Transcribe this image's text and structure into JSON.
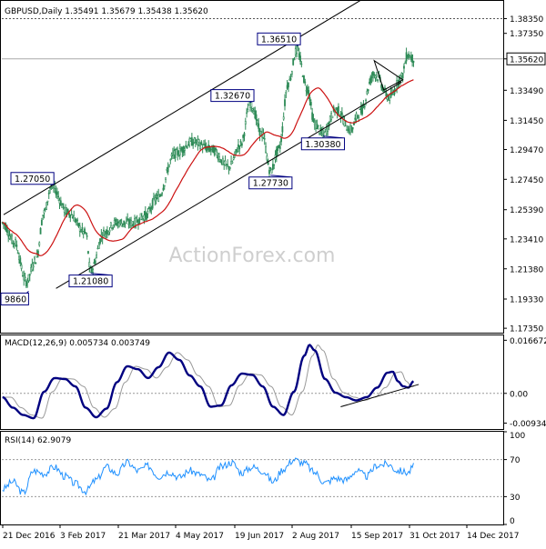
{
  "chart_data": [
    {
      "type": "candlestick",
      "symbol": "GBPUSD",
      "timeframe": "Daily",
      "title": "GBPUSD,Daily  1.35491 1.35679 1.35438 1.35620",
      "ohlc_last": {
        "open": 1.35491,
        "high": 1.35679,
        "low": 1.35438,
        "close": 1.3562
      },
      "price_label": "1.35620",
      "ylim": [
        1.1705,
        1.3955
      ],
      "y_ticks": [
        1.3835,
        1.3735,
        1.3562,
        1.3349,
        1.3145,
        1.2947,
        1.2745,
        1.2539,
        1.2341,
        1.2138,
        1.1933,
        1.1735
      ],
      "y_tick_labels": [
        "1.38350",
        "1.37350",
        "1.35620",
        "1.33490",
        "1.31450",
        "1.29470",
        "1.27450",
        "1.25390",
        "1.23410",
        "1.21380",
        "1.19330",
        "1.17350"
      ],
      "resistance_level": 1.3835,
      "annotations": [
        {
          "label": "1.36510",
          "value": 1.3651,
          "bar": 247
        },
        {
          "label": "1.32670",
          "value": 1.3267,
          "bar": 208
        },
        {
          "label": "1.27050",
          "value": 1.2705,
          "bar": 41
        },
        {
          "label": "1.27730",
          "value": 1.2773,
          "bar": 225
        },
        {
          "label": "1.30380",
          "value": 1.3038,
          "bar": 269
        },
        {
          "label": "1.21080",
          "value": 1.2108,
          "bar": 74
        },
        {
          "label": "9860",
          "value": 1.1986,
          "bar": 22
        }
      ],
      "channel": {
        "upper": [
          [
            1,
            1.2505
          ],
          [
            310,
            1.4005
          ]
        ],
        "lower": [
          [
            45,
            1.2005
          ],
          [
            335,
            1.3405
          ]
        ]
      },
      "moving_average_color": "#cc1111",
      "candle_color": "#2e8b57",
      "x_tick_labels": [
        "21 Dec 2016",
        "3 Feb 2017",
        "21 Mar 2017",
        "4 May 2017",
        "19 Jun 2017",
        "2 Aug 2017",
        "15 Sep 2017",
        "31 Oct 2017",
        "14 Dec 2017"
      ],
      "watermark": "ActionForex.com"
    },
    {
      "type": "line",
      "title": "MACD(12,26,9) 0.005734 0.003749",
      "ylim": [
        -0.0112,
        0.0182
      ],
      "y_ticks": [
        0.016672,
        0.0,
        -0.009345
      ],
      "y_tick_labels": [
        "0.016672",
        "0.00",
        "-0.009345"
      ],
      "series": [
        {
          "name": "MACD",
          "color": "#000080"
        },
        {
          "name": "Signal",
          "color": "#9a9a9a"
        }
      ],
      "values": [
        [
          0,
          -0.0012
        ],
        [
          10,
          -0.0045
        ],
        [
          20,
          -0.0068
        ],
        [
          30,
          -0.0078
        ],
        [
          40,
          0.0005
        ],
        [
          50,
          0.0048
        ],
        [
          60,
          0.0045
        ],
        [
          70,
          0.0022
        ],
        [
          80,
          -0.0045
        ],
        [
          90,
          -0.0075
        ],
        [
          100,
          -0.0048
        ],
        [
          110,
          0.0035
        ],
        [
          120,
          0.0085
        ],
        [
          130,
          0.0076
        ],
        [
          140,
          0.0048
        ],
        [
          150,
          0.0082
        ],
        [
          160,
          0.0128
        ],
        [
          170,
          0.0105
        ],
        [
          180,
          0.0056
        ],
        [
          190,
          0.0022
        ],
        [
          200,
          -0.0042
        ],
        [
          210,
          -0.0038
        ],
        [
          220,
          0.0025
        ],
        [
          230,
          0.0062
        ],
        [
          240,
          0.0058
        ],
        [
          250,
          0.0022
        ],
        [
          260,
          -0.0042
        ],
        [
          270,
          -0.0068
        ],
        [
          280,
          0.0005
        ],
        [
          290,
          0.0118
        ],
        [
          295,
          0.0152
        ],
        [
          300,
          0.0135
        ],
        [
          310,
          0.0045
        ],
        [
          320,
          0.0002
        ],
        [
          330,
          -0.0012
        ],
        [
          340,
          -0.0022
        ],
        [
          350,
          -0.0012
        ],
        [
          360,
          0.0018
        ],
        [
          370,
          0.0065
        ],
        [
          375,
          0.0068
        ],
        [
          380,
          0.0038
        ],
        [
          385,
          0.0022
        ],
        [
          390,
          0.0018
        ],
        [
          395,
          0.0038
        ]
      ],
      "trendline": [
        [
          325,
          -0.0042
        ],
        [
          400,
          0.0028
        ]
      ]
    },
    {
      "type": "line",
      "title": "RSI(14) 62.9079",
      "ylim": [
        0,
        100
      ],
      "y_ticks": [
        100,
        70,
        30,
        0
      ],
      "y_tick_labels": [
        "100",
        "70",
        "30",
        "0"
      ],
      "reference_lines": [
        70,
        30
      ],
      "series": [
        {
          "name": "RSI",
          "color": "#1e90ff"
        }
      ],
      "values": [
        [
          0,
          38
        ],
        [
          10,
          46
        ],
        [
          20,
          34
        ],
        [
          30,
          58
        ],
        [
          40,
          55
        ],
        [
          50,
          62
        ],
        [
          60,
          52
        ],
        [
          70,
          44
        ],
        [
          80,
          36
        ],
        [
          90,
          48
        ],
        [
          100,
          62
        ],
        [
          110,
          55
        ],
        [
          120,
          67
        ],
        [
          130,
          58
        ],
        [
          140,
          63
        ],
        [
          150,
          52
        ],
        [
          160,
          57
        ],
        [
          170,
          51
        ],
        [
          180,
          58
        ],
        [
          190,
          54
        ],
        [
          200,
          47
        ],
        [
          210,
          62
        ],
        [
          220,
          67
        ],
        [
          230,
          56
        ],
        [
          240,
          62
        ],
        [
          250,
          58
        ],
        [
          260,
          46
        ],
        [
          270,
          60
        ],
        [
          280,
          70
        ],
        [
          290,
          66
        ],
        [
          300,
          56
        ],
        [
          310,
          45
        ],
        [
          320,
          50
        ],
        [
          330,
          48
        ],
        [
          340,
          58
        ],
        [
          350,
          52
        ],
        [
          360,
          64
        ],
        [
          370,
          65
        ],
        [
          380,
          58
        ],
        [
          390,
          56
        ],
        [
          395,
          63
        ]
      ]
    }
  ]
}
